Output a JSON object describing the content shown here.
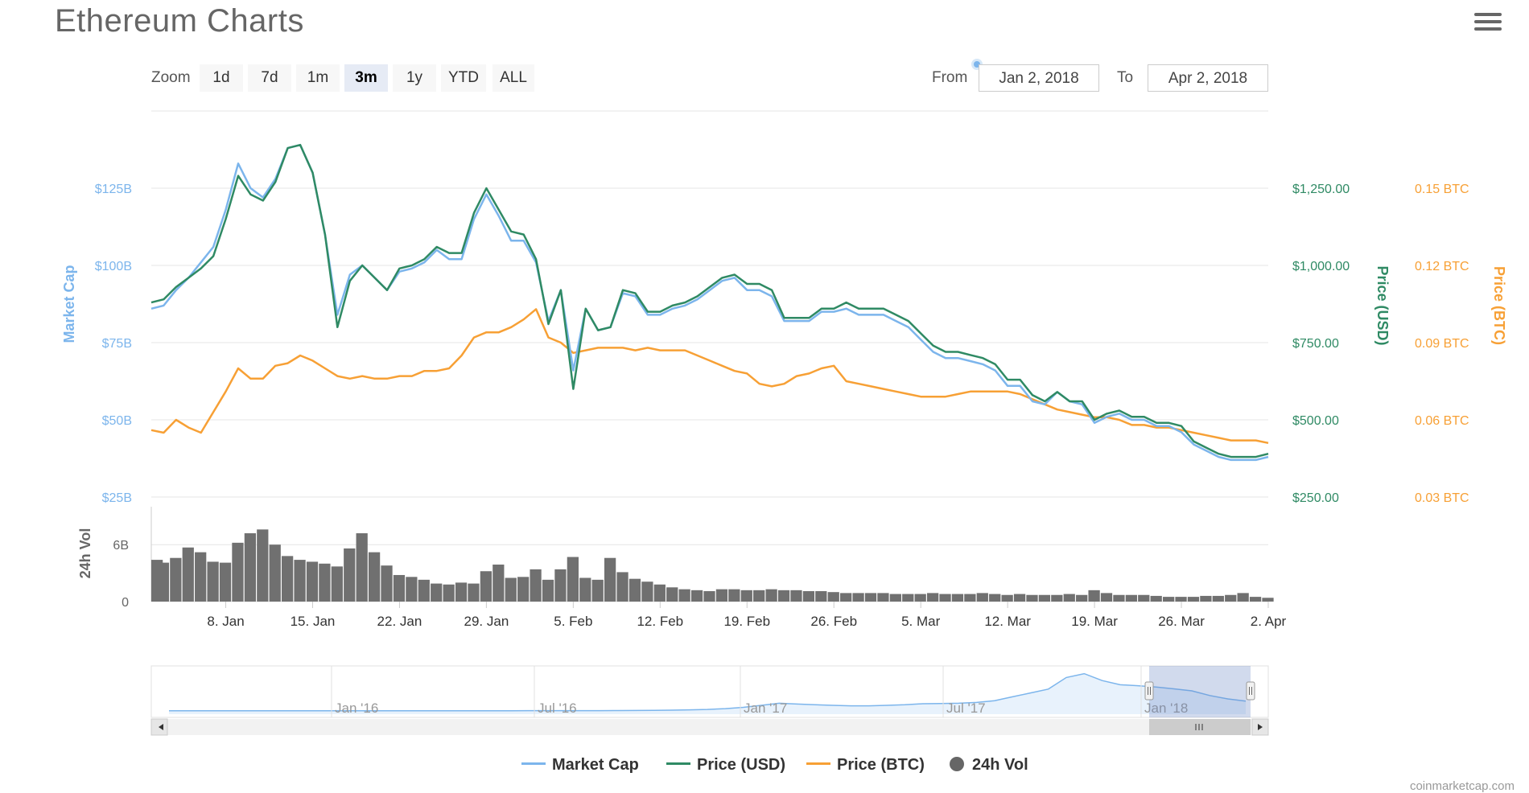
{
  "title": "Ethereum Charts",
  "zoom": {
    "label": "Zoom",
    "buttons": [
      "1d",
      "7d",
      "1m",
      "3m",
      "1y",
      "YTD",
      "ALL"
    ],
    "active": "3m"
  },
  "date_range": {
    "from_label": "From",
    "from_value": "Jan 2, 2018",
    "to_label": "To",
    "to_value": "Apr 2, 2018"
  },
  "legend": [
    {
      "name": "Market Cap",
      "color": "#7cb5ec",
      "shape": "line"
    },
    {
      "name": "Price (USD)",
      "color": "#2f8a64",
      "shape": "line"
    },
    {
      "name": "Price (BTC)",
      "color": "#f7a035",
      "shape": "line"
    },
    {
      "name": "24h Vol",
      "color": "#666666",
      "shape": "dot"
    }
  ],
  "credits": "coinmarketcap.com",
  "chart_data": {
    "type": "line",
    "x_tick_labels": [
      "8. Jan",
      "15. Jan",
      "22. Jan",
      "29. Jan",
      "5. Feb",
      "12. Feb",
      "19. Feb",
      "26. Feb",
      "5. Mar",
      "12. Mar",
      "19. Mar",
      "26. Mar",
      "2. Apr"
    ],
    "x_tick_day_index": [
      6,
      13,
      20,
      27,
      34,
      41,
      48,
      55,
      62,
      69,
      76,
      83,
      90
    ],
    "x_range_days": [
      0,
      90
    ],
    "axes": {
      "market_cap": {
        "label": "Market Cap",
        "ticks": [
          "$25B",
          "$50B",
          "$75B",
          "$100B",
          "$125B"
        ],
        "tick_values": [
          25,
          50,
          75,
          100,
          125
        ],
        "range": [
          25,
          150
        ],
        "unit": "billion USD",
        "color": "#7cb5ec"
      },
      "price_usd": {
        "label": "Price (USD)",
        "ticks": [
          "$250.00",
          "$500.00",
          "$750.00",
          "$1,000.00",
          "$1,250.00"
        ],
        "tick_values": [
          250,
          500,
          750,
          1000,
          1250
        ],
        "range": [
          250,
          1500
        ],
        "color": "#2f8a64"
      },
      "price_btc": {
        "label": "Price (BTC)",
        "ticks": [
          "0.03 BTC",
          "0.06 BTC",
          "0.09 BTC",
          "0.12 BTC",
          "0.15 BTC"
        ],
        "tick_values": [
          0.03,
          0.06,
          0.09,
          0.12,
          0.15
        ],
        "range": [
          0.03,
          0.18
        ],
        "color": "#f7a035"
      },
      "volume": {
        "label": "24h Vol",
        "ticks": [
          "0",
          "6B"
        ],
        "tick_values": [
          0,
          6
        ],
        "range": [
          0,
          10
        ],
        "unit": "billion USD",
        "color": "#666666"
      }
    },
    "series": [
      {
        "name": "Market Cap",
        "axis": "market_cap",
        "day": [
          0,
          1,
          2,
          3,
          4,
          5,
          6,
          7,
          8,
          9,
          10,
          11,
          12,
          13,
          14,
          15,
          16,
          17,
          18,
          19,
          20,
          21,
          22,
          23,
          24,
          25,
          26,
          27,
          28,
          29,
          30,
          31,
          32,
          33,
          34,
          35,
          36,
          37,
          38,
          39,
          40,
          41,
          42,
          43,
          44,
          45,
          46,
          47,
          48,
          49,
          50,
          51,
          52,
          53,
          54,
          55,
          56,
          57,
          58,
          59,
          60,
          61,
          62,
          63,
          64,
          65,
          66,
          67,
          68,
          69,
          70,
          71,
          72,
          73,
          74,
          75,
          76,
          77,
          78,
          79,
          80,
          81,
          82,
          83,
          84,
          85,
          86,
          87,
          88,
          89,
          90
        ],
        "values": [
          86,
          87,
          92,
          96,
          101,
          106,
          118,
          133,
          125,
          122,
          128,
          138,
          139,
          130,
          110,
          84,
          97,
          100,
          96,
          92,
          98,
          99,
          101,
          105,
          102,
          102,
          115,
          123,
          116,
          108,
          108,
          101,
          82,
          92,
          66,
          86,
          79,
          80,
          91,
          90,
          84,
          84,
          86,
          87,
          89,
          92,
          95,
          96,
          92,
          92,
          90,
          82,
          82,
          82,
          85,
          85,
          86,
          84,
          84,
          84,
          82,
          80,
          76,
          72,
          70,
          70,
          69,
          68,
          66,
          61,
          61,
          56,
          55,
          59,
          56,
          55,
          49,
          51,
          52,
          50,
          50,
          48,
          48,
          46,
          42,
          40,
          38,
          37,
          37,
          37,
          38
        ]
      },
      {
        "name": "Price (USD)",
        "axis": "price_usd",
        "day": [
          0,
          1,
          2,
          3,
          4,
          5,
          6,
          7,
          8,
          9,
          10,
          11,
          12,
          13,
          14,
          15,
          16,
          17,
          18,
          19,
          20,
          21,
          22,
          23,
          24,
          25,
          26,
          27,
          28,
          29,
          30,
          31,
          32,
          33,
          34,
          35,
          36,
          37,
          38,
          39,
          40,
          41,
          42,
          43,
          44,
          45,
          46,
          47,
          48,
          49,
          50,
          51,
          52,
          53,
          54,
          55,
          56,
          57,
          58,
          59,
          60,
          61,
          62,
          63,
          64,
          65,
          66,
          67,
          68,
          69,
          70,
          71,
          72,
          73,
          74,
          75,
          76,
          77,
          78,
          79,
          80,
          81,
          82,
          83,
          84,
          85,
          86,
          87,
          88,
          89,
          90
        ],
        "values": [
          880,
          890,
          930,
          960,
          990,
          1030,
          1150,
          1290,
          1230,
          1210,
          1270,
          1380,
          1390,
          1300,
          1100,
          800,
          950,
          1000,
          960,
          920,
          990,
          1000,
          1020,
          1060,
          1040,
          1040,
          1170,
          1250,
          1180,
          1110,
          1100,
          1020,
          810,
          920,
          600,
          860,
          790,
          800,
          920,
          910,
          850,
          850,
          870,
          880,
          900,
          930,
          960,
          970,
          940,
          940,
          920,
          830,
          830,
          830,
          860,
          860,
          880,
          860,
          860,
          860,
          840,
          820,
          780,
          740,
          720,
          720,
          710,
          700,
          680,
          630,
          630,
          580,
          560,
          590,
          560,
          560,
          500,
          520,
          530,
          510,
          510,
          490,
          490,
          480,
          430,
          410,
          390,
          380,
          380,
          380,
          390
        ]
      },
      {
        "name": "Price (BTC)",
        "axis": "price_btc",
        "day": [
          0,
          1,
          2,
          3,
          4,
          5,
          6,
          7,
          8,
          9,
          10,
          11,
          12,
          13,
          14,
          15,
          16,
          17,
          18,
          19,
          20,
          21,
          22,
          23,
          24,
          25,
          26,
          27,
          28,
          29,
          30,
          31,
          32,
          33,
          34,
          35,
          36,
          37,
          38,
          39,
          40,
          41,
          42,
          43,
          44,
          45,
          46,
          47,
          48,
          49,
          50,
          51,
          52,
          53,
          54,
          55,
          56,
          57,
          58,
          59,
          60,
          61,
          62,
          63,
          64,
          65,
          66,
          67,
          68,
          69,
          70,
          71,
          72,
          73,
          74,
          75,
          76,
          77,
          78,
          79,
          80,
          81,
          82,
          83,
          84,
          85,
          86,
          87,
          88,
          89,
          90
        ],
        "values": [
          0.056,
          0.055,
          0.06,
          0.057,
          0.055,
          0.063,
          0.071,
          0.08,
          0.076,
          0.076,
          0.081,
          0.082,
          0.085,
          0.083,
          0.08,
          0.077,
          0.076,
          0.077,
          0.076,
          0.076,
          0.077,
          0.077,
          0.079,
          0.079,
          0.08,
          0.085,
          0.092,
          0.094,
          0.094,
          0.096,
          0.099,
          0.103,
          0.092,
          0.09,
          0.086,
          0.087,
          0.088,
          0.088,
          0.088,
          0.087,
          0.088,
          0.087,
          0.087,
          0.087,
          0.085,
          0.083,
          0.081,
          0.079,
          0.078,
          0.074,
          0.073,
          0.074,
          0.077,
          0.078,
          0.08,
          0.081,
          0.075,
          0.074,
          0.073,
          0.072,
          0.071,
          0.07,
          0.069,
          0.069,
          0.069,
          0.07,
          0.071,
          0.071,
          0.071,
          0.071,
          0.07,
          0.068,
          0.066,
          0.064,
          0.063,
          0.062,
          0.061,
          0.061,
          0.06,
          0.058,
          0.058,
          0.057,
          0.057,
          0.056,
          0.055,
          0.054,
          0.053,
          0.052,
          0.052,
          0.052,
          0.051
        ]
      },
      {
        "name": "24h Vol",
        "axis": "volume",
        "type": "column",
        "day": [
          0,
          1,
          2,
          3,
          4,
          5,
          6,
          7,
          8,
          9,
          10,
          11,
          12,
          13,
          14,
          15,
          16,
          17,
          18,
          19,
          20,
          21,
          22,
          23,
          24,
          25,
          26,
          27,
          28,
          29,
          30,
          31,
          32,
          33,
          34,
          35,
          36,
          37,
          38,
          39,
          40,
          41,
          42,
          43,
          44,
          45,
          46,
          47,
          48,
          49,
          50,
          51,
          52,
          53,
          54,
          55,
          56,
          57,
          58,
          59,
          60,
          61,
          62,
          63,
          64,
          65,
          66,
          67,
          68,
          69,
          70,
          71,
          72,
          73,
          74,
          75,
          76,
          77,
          78,
          79,
          80,
          81,
          82,
          83,
          84,
          85,
          86,
          87,
          88,
          89,
          90
        ],
        "values": [
          4.4,
          4.1,
          4.6,
          5.7,
          5.2,
          4.2,
          4.1,
          6.2,
          7.2,
          7.6,
          6.0,
          4.8,
          4.4,
          4.2,
          4.0,
          3.7,
          5.6,
          7.2,
          5.2,
          3.8,
          2.8,
          2.6,
          2.3,
          1.9,
          1.8,
          2.0,
          1.9,
          3.2,
          3.9,
          2.5,
          2.6,
          3.4,
          2.3,
          3.4,
          4.7,
          2.5,
          2.3,
          4.6,
          3.1,
          2.4,
          2.1,
          1.8,
          1.5,
          1.3,
          1.2,
          1.1,
          1.3,
          1.3,
          1.2,
          1.2,
          1.3,
          1.2,
          1.2,
          1.1,
          1.1,
          1.0,
          0.9,
          0.9,
          0.9,
          0.9,
          0.8,
          0.8,
          0.8,
          0.9,
          0.8,
          0.8,
          0.8,
          0.9,
          0.8,
          0.7,
          0.8,
          0.7,
          0.7,
          0.7,
          0.8,
          0.7,
          1.2,
          0.9,
          0.7,
          0.7,
          0.7,
          0.6,
          0.5,
          0.5,
          0.5,
          0.6,
          0.6,
          0.7,
          0.9,
          0.5,
          0.4
        ]
      }
    ],
    "navigator": {
      "x_labels": [
        "Jan '16",
        "Jul '16",
        "Jan '17",
        "Jul '17",
        "Jan '18"
      ],
      "series": "Market Cap",
      "values": [
        0.5,
        0.5,
        0.5,
        0.5,
        0.5,
        0.5,
        0.6,
        0.6,
        0.8,
        0.9,
        1.0,
        1.0,
        0.9,
        0.9,
        0.8,
        0.8,
        0.8,
        0.9,
        1.0,
        1.0,
        1.1,
        1.1,
        1.1,
        1.2,
        1.4,
        1.6,
        1.9,
        2.3,
        3.0,
        4.5,
        6.0,
        9.0,
        14,
        22,
        30,
        27,
        24,
        22,
        20,
        20,
        22,
        24,
        28,
        29,
        30,
        33,
        40,
        55,
        70,
        85,
        130,
        145,
        118,
        102,
        98,
        93,
        86,
        78,
        60,
        47,
        38
      ]
    },
    "grid": true,
    "legend_position": "bottom"
  }
}
